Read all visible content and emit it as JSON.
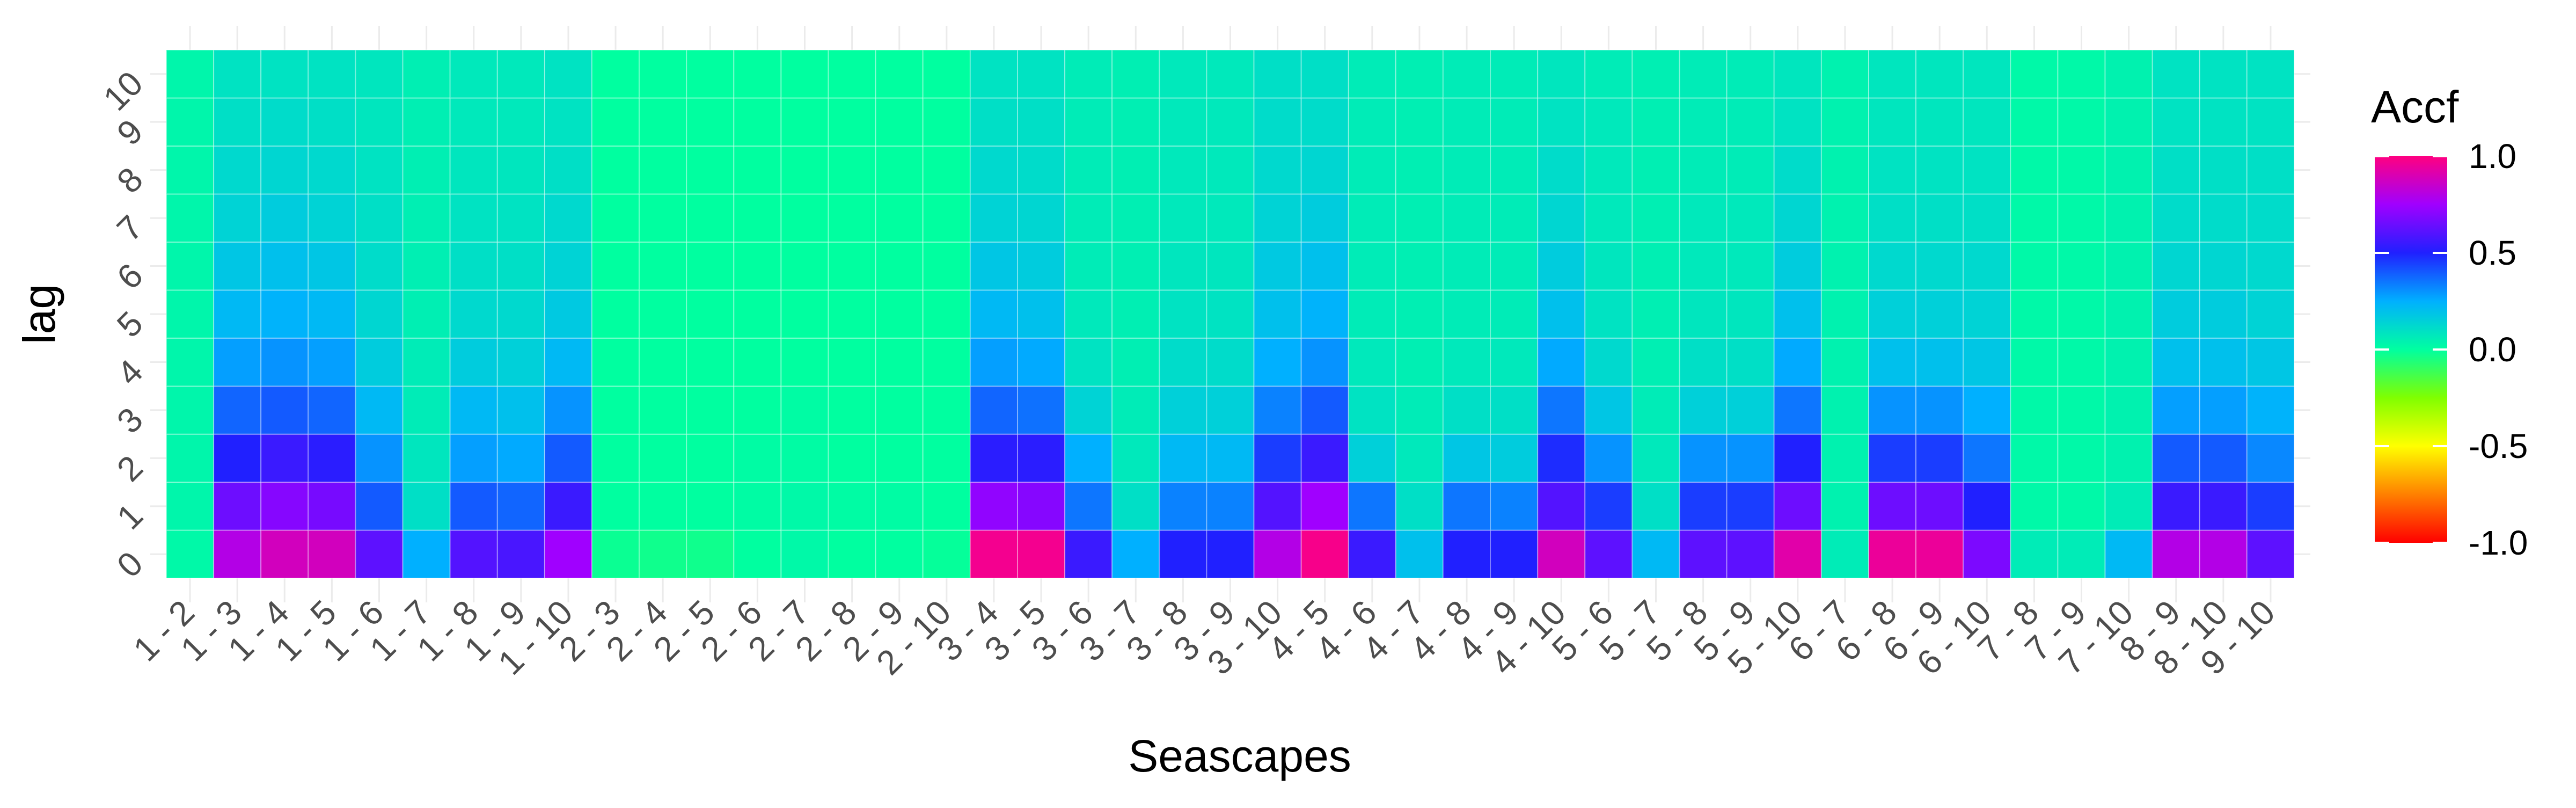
{
  "chart_data": {
    "type": "heatmap",
    "xlabel": "Seascapes",
    "ylabel": "lag",
    "x_categories": [
      "1 - 2",
      "1 - 3",
      "1 - 4",
      "1 - 5",
      "1 - 6",
      "1 - 7",
      "1 - 8",
      "1 - 9",
      "1 - 10",
      "2 - 3",
      "2 - 4",
      "2 - 5",
      "2 - 6",
      "2 - 7",
      "2 - 8",
      "2 - 9",
      "2 - 10",
      "3 - 4",
      "3 - 5",
      "3 - 6",
      "3 - 7",
      "3 - 8",
      "3 - 9",
      "3 - 10",
      "4 - 5",
      "4 - 6",
      "4 - 7",
      "4 - 8",
      "4 - 9",
      "4 - 10",
      "5 - 6",
      "5 - 7",
      "5 - 8",
      "5 - 9",
      "5 - 10",
      "6 - 7",
      "6 - 8",
      "6 - 9",
      "6 - 10",
      "7 - 8",
      "7 - 9",
      "7 - 10",
      "8 - 9",
      "8 - 10",
      "9 - 10"
    ],
    "y_categories": [
      "0",
      "1",
      "2",
      "3",
      "4",
      "5",
      "6",
      "7",
      "8",
      "9",
      "10"
    ],
    "legend": {
      "title": "Accf",
      "placement": "right",
      "range": [
        -1.0,
        1.0
      ],
      "tick_labels": [
        "1.0",
        "0.5",
        "0.0",
        "-0.5",
        "-1.0"
      ],
      "tick_values": [
        1.0,
        0.5,
        0.0,
        -0.5,
        -1.0
      ],
      "colorscale": [
        [
          -1.0,
          "#ff0000"
        ],
        [
          -0.75,
          "#ff8000"
        ],
        [
          -0.5,
          "#ffff00"
        ],
        [
          -0.25,
          "#80ff00"
        ],
        [
          0.0,
          "#00ffa0"
        ],
        [
          0.25,
          "#00b0ff"
        ],
        [
          0.5,
          "#2020ff"
        ],
        [
          0.75,
          "#a000ff"
        ],
        [
          1.0,
          "#ff0080"
        ]
      ]
    },
    "values": [
      [
        0.02,
        0.03,
        0.03,
        0.03,
        0.03,
        0.03,
        0.03,
        0.03,
        0.03,
        0.03,
        0.03
      ],
      [
        0.8,
        0.65,
        0.5,
        0.38,
        0.28,
        0.22,
        0.18,
        0.14,
        0.12,
        0.1,
        0.09
      ],
      [
        0.88,
        0.7,
        0.55,
        0.4,
        0.3,
        0.24,
        0.2,
        0.16,
        0.13,
        0.11,
        0.09
      ],
      [
        0.88,
        0.67,
        0.52,
        0.38,
        0.28,
        0.22,
        0.18,
        0.14,
        0.12,
        0.1,
        0.09
      ],
      [
        0.62,
        0.4,
        0.3,
        0.22,
        0.16,
        0.13,
        0.11,
        0.1,
        0.09,
        0.08,
        0.08
      ],
      [
        0.25,
        0.1,
        0.08,
        0.06,
        0.06,
        0.05,
        0.05,
        0.05,
        0.05,
        0.05,
        0.05
      ],
      [
        0.6,
        0.4,
        0.28,
        0.22,
        0.16,
        0.12,
        0.1,
        0.09,
        0.08,
        0.07,
        0.07
      ],
      [
        0.58,
        0.38,
        0.26,
        0.2,
        0.15,
        0.12,
        0.1,
        0.09,
        0.08,
        0.07,
        0.07
      ],
      [
        0.75,
        0.55,
        0.4,
        0.3,
        0.22,
        0.17,
        0.14,
        0.12,
        0.1,
        0.09,
        0.09
      ],
      [
        -0.02,
        0.0,
        0.0,
        0.0,
        0.0,
        0.0,
        0.0,
        0.0,
        0.0,
        0.0,
        0.0
      ],
      [
        -0.03,
        0.0,
        0.0,
        0.0,
        0.0,
        0.0,
        0.0,
        0.0,
        0.0,
        0.0,
        0.0
      ],
      [
        -0.03,
        0.0,
        0.0,
        0.0,
        0.0,
        0.0,
        0.0,
        0.0,
        0.0,
        0.0,
        0.0
      ],
      [
        0.0,
        0.01,
        0.01,
        0.0,
        0.0,
        0.0,
        0.0,
        0.0,
        0.0,
        0.0,
        0.0
      ],
      [
        0.02,
        0.02,
        0.01,
        0.01,
        0.0,
        0.0,
        0.0,
        0.0,
        0.0,
        0.0,
        0.0
      ],
      [
        0.0,
        0.01,
        0.0,
        0.0,
        0.0,
        0.0,
        0.0,
        0.0,
        0.0,
        0.0,
        0.0
      ],
      [
        0.0,
        0.01,
        0.0,
        0.0,
        0.0,
        0.0,
        0.0,
        0.0,
        0.0,
        0.0,
        0.0
      ],
      [
        -0.01,
        0.0,
        0.0,
        0.0,
        0.0,
        0.0,
        0.0,
        0.0,
        0.0,
        0.0,
        0.0
      ],
      [
        0.97,
        0.72,
        0.52,
        0.38,
        0.28,
        0.22,
        0.18,
        0.14,
        0.12,
        0.1,
        0.09
      ],
      [
        0.97,
        0.7,
        0.52,
        0.36,
        0.26,
        0.2,
        0.16,
        0.13,
        0.11,
        0.1,
        0.09
      ],
      [
        0.55,
        0.35,
        0.25,
        0.14,
        0.09,
        0.07,
        0.06,
        0.06,
        0.06,
        0.06,
        0.06
      ],
      [
        0.25,
        0.1,
        0.07,
        0.06,
        0.05,
        0.05,
        0.05,
        0.05,
        0.05,
        0.05,
        0.05
      ],
      [
        0.5,
        0.33,
        0.22,
        0.15,
        0.11,
        0.09,
        0.08,
        0.07,
        0.07,
        0.07,
        0.07
      ],
      [
        0.5,
        0.33,
        0.22,
        0.15,
        0.11,
        0.09,
        0.08,
        0.07,
        0.07,
        0.07,
        0.07
      ],
      [
        0.8,
        0.6,
        0.45,
        0.33,
        0.25,
        0.2,
        0.17,
        0.14,
        0.12,
        0.11,
        0.1
      ],
      [
        0.98,
        0.75,
        0.55,
        0.4,
        0.3,
        0.24,
        0.2,
        0.16,
        0.13,
        0.11,
        0.1
      ],
      [
        0.55,
        0.35,
        0.15,
        0.09,
        0.07,
        0.06,
        0.06,
        0.06,
        0.06,
        0.06,
        0.06
      ],
      [
        0.2,
        0.1,
        0.07,
        0.06,
        0.05,
        0.05,
        0.05,
        0.05,
        0.05,
        0.05,
        0.05
      ],
      [
        0.5,
        0.35,
        0.18,
        0.1,
        0.07,
        0.06,
        0.06,
        0.06,
        0.06,
        0.06,
        0.06
      ],
      [
        0.5,
        0.33,
        0.16,
        0.1,
        0.07,
        0.06,
        0.06,
        0.06,
        0.06,
        0.06,
        0.06
      ],
      [
        0.88,
        0.6,
        0.48,
        0.35,
        0.26,
        0.2,
        0.16,
        0.13,
        0.11,
        0.09,
        0.08
      ],
      [
        0.62,
        0.45,
        0.3,
        0.18,
        0.12,
        0.09,
        0.08,
        0.07,
        0.07,
        0.07,
        0.06
      ],
      [
        0.22,
        0.1,
        0.07,
        0.06,
        0.05,
        0.05,
        0.05,
        0.05,
        0.05,
        0.05,
        0.05
      ],
      [
        0.62,
        0.45,
        0.3,
        0.15,
        0.1,
        0.08,
        0.07,
        0.07,
        0.06,
        0.06,
        0.06
      ],
      [
        0.62,
        0.45,
        0.3,
        0.15,
        0.1,
        0.08,
        0.07,
        0.07,
        0.06,
        0.06,
        0.06
      ],
      [
        0.92,
        0.65,
        0.5,
        0.35,
        0.26,
        0.2,
        0.16,
        0.13,
        0.11,
        0.09,
        0.08
      ],
      [
        0.06,
        0.04,
        0.04,
        0.04,
        0.04,
        0.04,
        0.04,
        0.04,
        0.04,
        0.04,
        0.04
      ],
      [
        0.95,
        0.65,
        0.45,
        0.3,
        0.2,
        0.15,
        0.12,
        0.1,
        0.09,
        0.08,
        0.08
      ],
      [
        0.95,
        0.65,
        0.45,
        0.3,
        0.2,
        0.15,
        0.12,
        0.1,
        0.09,
        0.08,
        0.08
      ],
      [
        0.68,
        0.5,
        0.35,
        0.25,
        0.18,
        0.14,
        0.12,
        0.1,
        0.09,
        0.08,
        0.08
      ],
      [
        0.06,
        0.02,
        0.02,
        0.02,
        0.02,
        0.02,
        0.02,
        0.02,
        0.02,
        0.02,
        0.02
      ],
      [
        0.06,
        0.02,
        0.02,
        0.02,
        0.02,
        0.02,
        0.02,
        0.02,
        0.02,
        0.02,
        0.02
      ],
      [
        0.22,
        0.06,
        0.04,
        0.04,
        0.04,
        0.04,
        0.04,
        0.04,
        0.04,
        0.04,
        0.04
      ],
      [
        0.8,
        0.55,
        0.4,
        0.28,
        0.2,
        0.16,
        0.13,
        0.11,
        0.1,
        0.09,
        0.09
      ],
      [
        0.8,
        0.55,
        0.4,
        0.28,
        0.2,
        0.16,
        0.13,
        0.11,
        0.1,
        0.09,
        0.09
      ],
      [
        0.62,
        0.45,
        0.32,
        0.24,
        0.18,
        0.14,
        0.12,
        0.11,
        0.1,
        0.09,
        0.09
      ]
    ]
  }
}
